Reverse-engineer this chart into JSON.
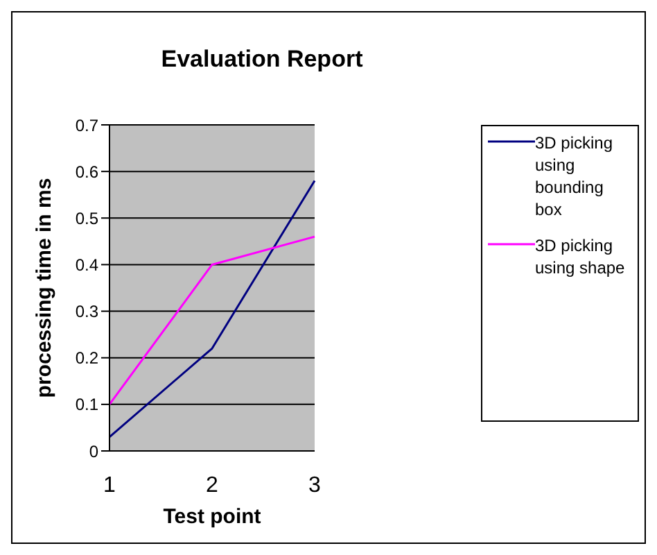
{
  "chart_data": {
    "type": "line",
    "title": "Evaluation Report",
    "xlabel": "Test point",
    "ylabel": "processing time in ms",
    "categories": [
      "1",
      "2",
      "3"
    ],
    "series": [
      {
        "name": "3D picking using bounding box",
        "color": "#000080",
        "values": [
          0.03,
          0.22,
          0.58
        ]
      },
      {
        "name": "3D picking using shape",
        "color": "#ff00ff",
        "values": [
          0.1,
          0.4,
          0.46
        ]
      }
    ],
    "ylim": [
      0,
      0.7
    ],
    "yticks": [
      0,
      0.1,
      0.2,
      0.3,
      0.4,
      0.5,
      0.6,
      0.7
    ],
    "grid": "y",
    "legend": "right",
    "marker": "none",
    "line_style": "solid"
  }
}
